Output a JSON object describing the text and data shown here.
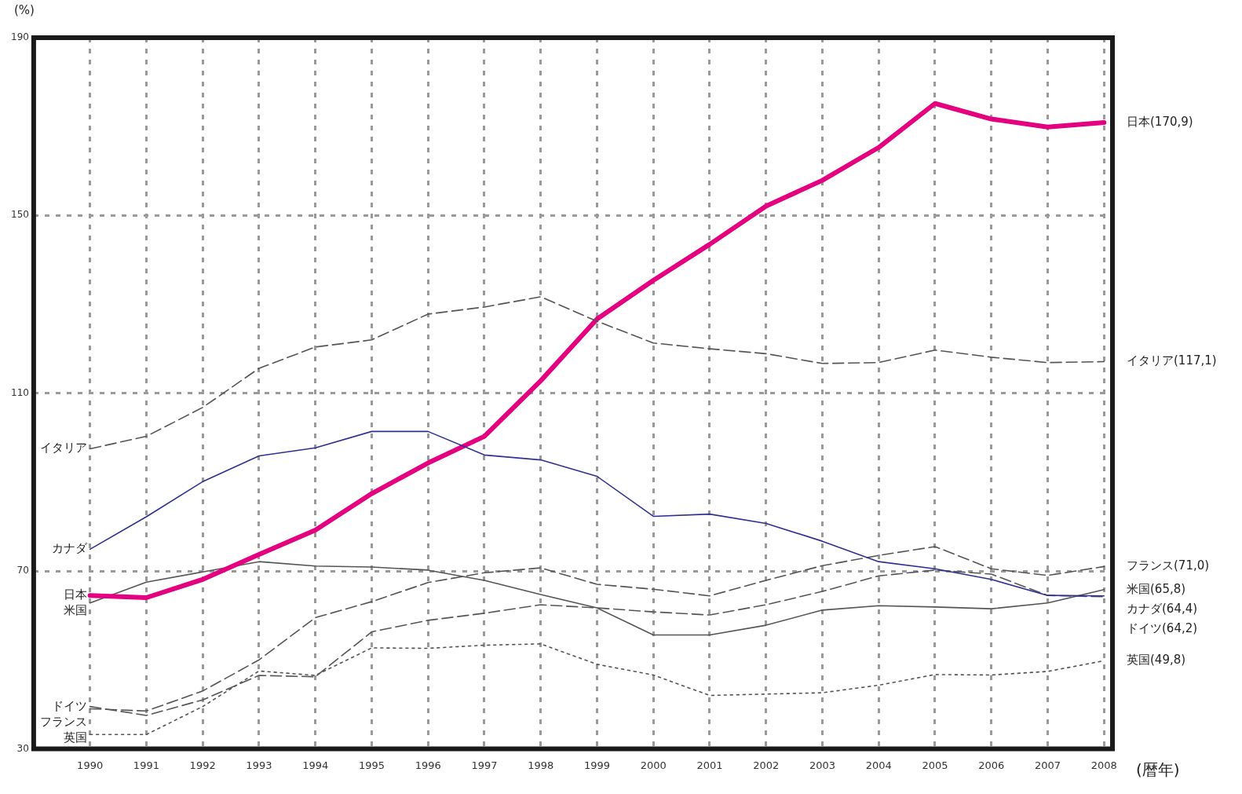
{
  "chart_data": {
    "type": "line",
    "ylabel": "(%)",
    "xlabel": "(暦年)",
    "x": [
      1990,
      1991,
      1992,
      1993,
      1994,
      1995,
      1996,
      1997,
      1998,
      1999,
      2000,
      2001,
      2002,
      2003,
      2004,
      2005,
      2006,
      2007,
      2008
    ],
    "xlim": [
      1989,
      2008.15
    ],
    "xticks": [
      1990,
      1991,
      1992,
      1993,
      1994,
      1995,
      1996,
      1997,
      1998,
      1999,
      2000,
      2001,
      2002,
      2003,
      2004,
      2005,
      2006,
      2007,
      2008
    ],
    "ylim": [
      30,
      190
    ],
    "yticks": [
      30,
      70,
      110,
      150,
      190
    ],
    "grid": true,
    "legend": false,
    "marker": "none",
    "series": [
      {
        "name": "イタリア",
        "color": "#555555",
        "line_style": "dashed",
        "values": [
          97.5,
          100.3,
          106.8,
          115.6,
          120.4,
          122.0,
          127.8,
          129.4,
          131.7,
          126.2,
          121.3,
          120.0,
          118.9,
          116.7,
          116.9,
          119.7,
          118.1,
          116.9,
          117.1
        ]
      },
      {
        "name": "カナダ",
        "color": "#2e3192",
        "line_style": "solid",
        "values": [
          74.9,
          82.2,
          90.1,
          95.9,
          97.7,
          101.4,
          101.4,
          96.1,
          95.0,
          91.3,
          82.3,
          82.8,
          80.7,
          76.7,
          72.1,
          70.5,
          68.1,
          64.5,
          64.4
        ]
      },
      {
        "name": "日本",
        "color": "#e4007f",
        "line_style": "solid",
        "values": [
          64.5,
          64.0,
          68.1,
          73.7,
          79.2,
          87.4,
          94.3,
          100.3,
          112.8,
          126.7,
          135.4,
          143.5,
          152.1,
          157.9,
          165.3,
          175.2,
          171.7,
          169.9,
          170.9
        ]
      },
      {
        "name": "米国",
        "color": "#555555",
        "line_style": "solid",
        "values": [
          62.8,
          67.5,
          69.8,
          72.1,
          71.1,
          70.9,
          70.2,
          67.9,
          64.7,
          61.7,
          55.6,
          55.6,
          57.8,
          61.2,
          62.2,
          61.9,
          61.5,
          62.8,
          65.8
        ]
      },
      {
        "name": "ドイツ",
        "color": "#555555",
        "line_style": "dashed",
        "values": [
          39.5,
          37.5,
          41.0,
          46.5,
          46.2,
          56.3,
          58.9,
          60.5,
          62.4,
          61.7,
          60.8,
          60.1,
          62.4,
          65.4,
          68.9,
          70.2,
          69.3,
          64.5,
          64.2
        ]
      },
      {
        "name": "フランス",
        "color": "#555555",
        "line_style": "dashed",
        "values": [
          39.0,
          38.5,
          43.0,
          50.0,
          59.5,
          63.1,
          67.4,
          69.6,
          70.7,
          67.0,
          65.9,
          64.4,
          67.9,
          71.2,
          73.5,
          75.5,
          70.5,
          69.0,
          71.0
        ]
      },
      {
        "name": "英国",
        "color": "#555555",
        "line_style": "dotted",
        "values": [
          33.2,
          33.2,
          39.5,
          47.5,
          46.5,
          52.7,
          52.6,
          53.3,
          53.6,
          49.0,
          46.6,
          42.0,
          42.3,
          42.6,
          44.3,
          46.7,
          46.6,
          47.4,
          49.8
        ]
      }
    ],
    "annotations": [
      "イタリア(117,1)",
      "カナダ(64,4)",
      "日本(170,9)",
      "米国(65,8)",
      "ドイツ(64,2)",
      "フランス(71,0)",
      "英国(49,8)"
    ]
  }
}
